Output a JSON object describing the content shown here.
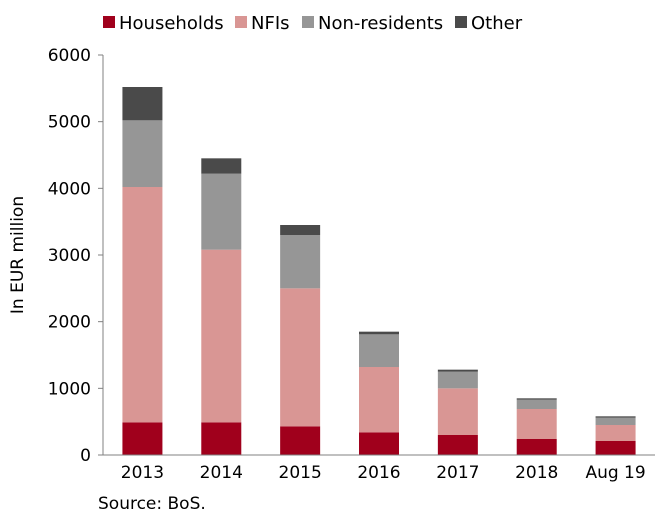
{
  "chart_data": {
    "type": "bar",
    "stacked": true,
    "categories": [
      "2013",
      "2014",
      "2015",
      "2016",
      "2017",
      "2018",
      "Aug 19"
    ],
    "series": [
      {
        "name": "Households",
        "color": "#a0001c",
        "values": [
          490,
          490,
          430,
          340,
          300,
          240,
          210
        ]
      },
      {
        "name": "NFIs",
        "color": "#d99694",
        "values": [
          3530,
          2590,
          2070,
          980,
          700,
          450,
          240
        ]
      },
      {
        "name": "Non-residents",
        "color": "#969696",
        "values": [
          1000,
          1140,
          800,
          490,
          250,
          140,
          110
        ]
      },
      {
        "name": "Other",
        "color": "#4a4a4a",
        "values": [
          500,
          230,
          150,
          40,
          30,
          20,
          20
        ]
      }
    ],
    "ylabel": "In EUR million",
    "xlabel": "",
    "ylim": [
      0,
      6000
    ],
    "yticks": [
      0,
      1000,
      2000,
      3000,
      4000,
      5000,
      6000
    ],
    "grid": false,
    "legend_position": "top",
    "source": "Source: BoS."
  }
}
